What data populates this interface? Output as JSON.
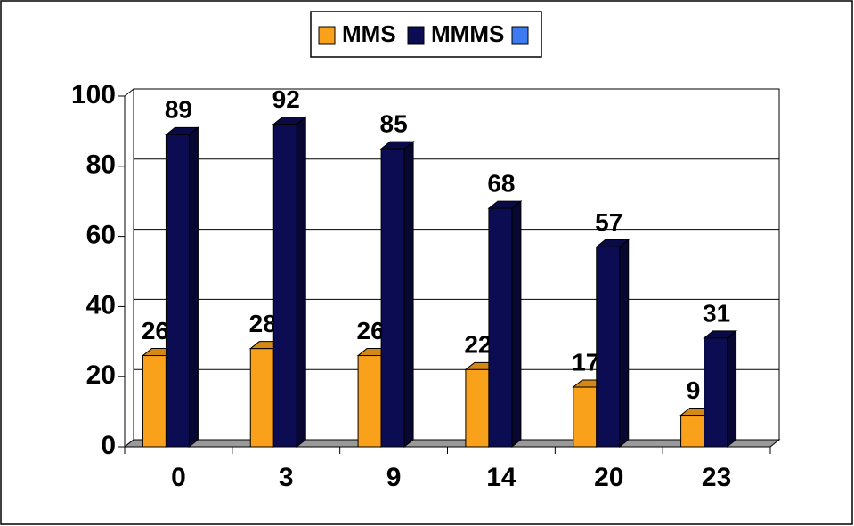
{
  "chart_data": {
    "type": "bar3d",
    "categories": [
      "0",
      "3",
      "9",
      "14",
      "20",
      "23"
    ],
    "series": [
      {
        "name": "MMS",
        "color": "#f9a11b",
        "values": [
          26,
          28,
          26,
          22,
          17,
          9
        ]
      },
      {
        "name": "MMMS",
        "color": "#0c0c52",
        "values": [
          89,
          92,
          85,
          68,
          57,
          31
        ]
      }
    ],
    "ylim": [
      0,
      100
    ],
    "yticks": [
      0,
      20,
      40,
      60,
      80,
      100
    ],
    "grid": true
  }
}
